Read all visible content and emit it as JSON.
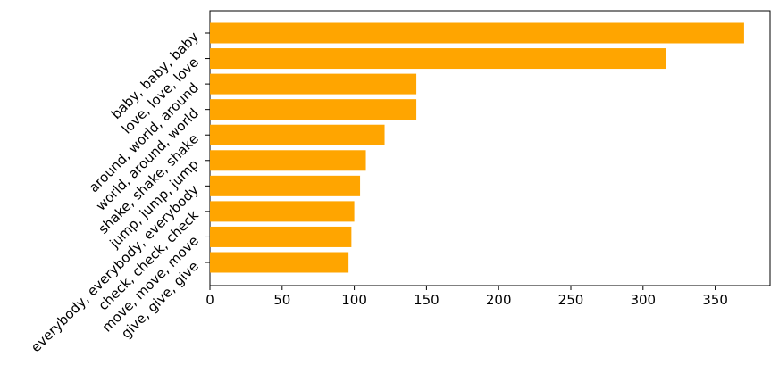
{
  "chart_data": {
    "type": "barh",
    "categories": [
      "baby, baby, baby",
      "love, love, love",
      "around, world, around",
      "world, around, world",
      "shake, shake, shake",
      "jump, jump, jump",
      "everybody, everybody, everybody",
      "check, check, check",
      "move, move, move",
      "give, give, give"
    ],
    "values": [
      370,
      316,
      143,
      143,
      121,
      108,
      104,
      100,
      98,
      96
    ],
    "color": "#ffa500",
    "xlim": [
      0,
      388
    ],
    "xticks": [
      0,
      50,
      100,
      150,
      200,
      250,
      300,
      350
    ]
  }
}
